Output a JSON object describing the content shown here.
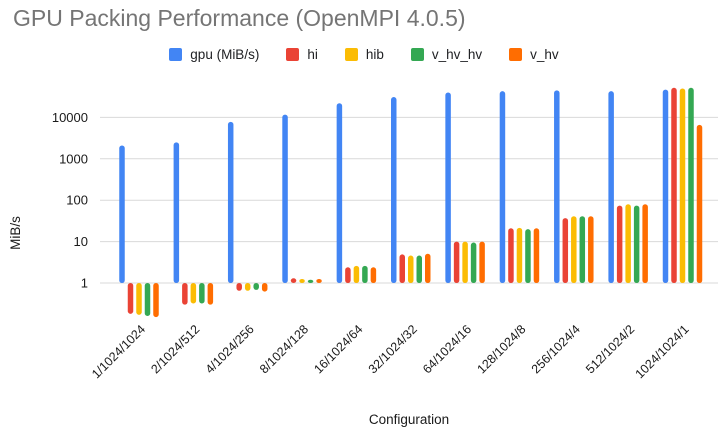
{
  "page_title": "GPU Packing Performance (OpenMPI 4.0.5)",
  "chart_data": {
    "type": "bar",
    "title": "GPU Packing Performance (OpenMPI 4.0.5)",
    "xlabel": "Configuration",
    "ylabel": "MiB/s",
    "y_scale": "log",
    "y_ticks": [
      "1",
      "10",
      "100",
      "1000",
      "10000"
    ],
    "ylim": [
      0.13,
      80000
    ],
    "grid": true,
    "legend_position": "top",
    "background": "#ffffff",
    "gridline_color": "#d9d9d9",
    "title_color": "#757575",
    "text_color": "#1a1a1a",
    "categories": [
      "1/1024/1024",
      "2/1024/512",
      "4/1024/256",
      "8/1024/128",
      "16/1024/64",
      "32/1024/32",
      "64/1024/16",
      "128/1024/8",
      "256/1024/4",
      "512/1024/2",
      "1024/1024/1"
    ],
    "series": [
      {
        "name": "gpu (MiB/s)",
        "color": "#4285F4",
        "values": [
          2100,
          2500,
          7800,
          11700,
          22000,
          31000,
          40000,
          43000,
          45000,
          43000,
          47000
        ]
      },
      {
        "name": "hi",
        "color": "#EA4335",
        "values": [
          0.18,
          0.3,
          0.65,
          1.3,
          2.4,
          4.9,
          10,
          21,
          37,
          74,
          52000
        ]
      },
      {
        "name": "hib",
        "color": "#FBBC04",
        "values": [
          0.17,
          0.32,
          0.65,
          1.25,
          2.6,
          4.6,
          10,
          21.5,
          41,
          80,
          50000
        ]
      },
      {
        "name": "v_hv_hv",
        "color": "#34A853",
        "values": [
          0.16,
          0.32,
          0.68,
          1.2,
          2.6,
          4.6,
          9.5,
          20,
          41,
          74,
          52000
        ]
      },
      {
        "name": "v_hv",
        "color": "#FF6D01",
        "values": [
          0.15,
          0.3,
          0.62,
          1.25,
          2.4,
          5.1,
          10,
          21,
          41,
          80,
          6600
        ]
      }
    ]
  }
}
